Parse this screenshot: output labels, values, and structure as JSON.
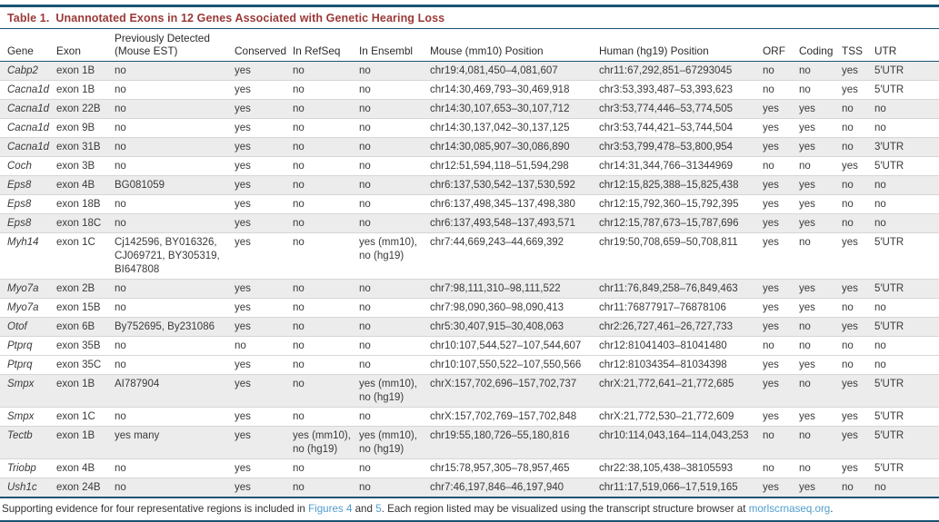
{
  "colors": {
    "rule_blue": "#1b5373",
    "title_red": "#9b3938",
    "link_blue": "#4f9dcd",
    "row_shade": "#ececec"
  },
  "table": {
    "title_label": "Table 1.",
    "title_text": "Unannotated Exons in 12 Genes Associated with Genetic Hearing Loss",
    "columns": [
      "Gene",
      "Exon",
      "Previously Detected (Mouse EST)",
      "Conserved",
      "In RefSeq",
      "In Ensembl",
      "Mouse (mm10) Position",
      "Human (hg19) Position",
      "ORF",
      "Coding",
      "TSS",
      "UTR"
    ],
    "column_keys": [
      "gene",
      "exon",
      "prev-detected",
      "conserved",
      "in-refseq",
      "in-ensembl",
      "mouse-position",
      "human-position",
      "orf",
      "coding",
      "tss",
      "utr"
    ],
    "shaded_row_indices": [
      0,
      2,
      4,
      6,
      8,
      10,
      12,
      15,
      17,
      19
    ],
    "rows": [
      [
        "Cabp2",
        "exon 1B",
        "no",
        "yes",
        "no",
        "no",
        "chr19:4,081,450–4,081,607",
        "chr11:67,292,851–67293045",
        "no",
        "no",
        "yes",
        "5′UTR"
      ],
      [
        "Cacna1d",
        "exon 1B",
        "no",
        "yes",
        "no",
        "no",
        "chr14:30,469,793–30,469,918",
        "chr3:53,393,487–53,393,623",
        "no",
        "no",
        "yes",
        "5′UTR"
      ],
      [
        "Cacna1d",
        "exon 22B",
        "no",
        "yes",
        "no",
        "no",
        "chr14:30,107,653–30,107,712",
        "chr3:53,774,446–53,774,505",
        "yes",
        "yes",
        "no",
        "no"
      ],
      [
        "Cacna1d",
        "exon 9B",
        "no",
        "yes",
        "no",
        "no",
        "chr14:30,137,042–30,137,125",
        "chr3:53,744,421–53,744,504",
        "yes",
        "yes",
        "no",
        "no"
      ],
      [
        "Cacna1d",
        "exon 31B",
        "no",
        "yes",
        "no",
        "no",
        "chr14:30,085,907–30,086,890",
        "chr3:53,799,478–53,800,954",
        "yes",
        "yes",
        "no",
        "3′UTR"
      ],
      [
        "Coch",
        "exon 3B",
        "no",
        "yes",
        "no",
        "no",
        "chr12:51,594,118–51,594,298",
        "chr14:31,344,766–31344969",
        "no",
        "no",
        "yes",
        "5′UTR"
      ],
      [
        "Eps8",
        "exon 4B",
        "BG081059",
        "yes",
        "no",
        "no",
        "chr6:137,530,542–137,530,592",
        "chr12:15,825,388–15,825,438",
        "yes",
        "yes",
        "no",
        "no"
      ],
      [
        "Eps8",
        "exon 18B",
        "no",
        "yes",
        "no",
        "no",
        "chr6:137,498,345–137,498,380",
        "chr12:15,792,360–15,792,395",
        "yes",
        "yes",
        "no",
        "no"
      ],
      [
        "Eps8",
        "exon 18C",
        "no",
        "yes",
        "no",
        "no",
        "chr6:137,493,548–137,493,571",
        "chr12:15,787,673–15,787,696",
        "yes",
        "yes",
        "no",
        "no"
      ],
      [
        "Myh14",
        "exon 1C",
        "Cj142596, BY016326, CJ069721, BY305319, BI647808",
        "yes",
        "no",
        "yes (mm10), no (hg19)",
        "chr7:44,669,243–44,669,392",
        "chr19:50,708,659–50,708,811",
        "yes",
        "no",
        "yes",
        "5′UTR"
      ],
      [
        "Myo7a",
        "exon 2B",
        "no",
        "yes",
        "no",
        "no",
        "chr7:98,111,310–98,111,522",
        "chr11:76,849,258–76,849,463",
        "yes",
        "yes",
        "yes",
        "5′UTR"
      ],
      [
        "Myo7a",
        "exon 15B",
        "no",
        "yes",
        "no",
        "no",
        "chr7:98,090,360–98,090,413",
        "chr11:76877917–76878106",
        "yes",
        "yes",
        "no",
        "no"
      ],
      [
        "Otof",
        "exon 6B",
        "By752695, By231086",
        "yes",
        "no",
        "no",
        "chr5:30,407,915–30,408,063",
        "chr2:26,727,461–26,727,733",
        "yes",
        "no",
        "yes",
        "5′UTR"
      ],
      [
        "Ptprq",
        "exon 35B",
        "no",
        "no",
        "no",
        "no",
        "chr10:107,544,527–107,544,607",
        "chr12:81041403–81041480",
        "no",
        "no",
        "no",
        "no"
      ],
      [
        "Ptprq",
        "exon 35C",
        "no",
        "yes",
        "no",
        "no",
        "chr10:107,550,522–107,550,566",
        "chr12:81034354–81034398",
        "yes",
        "yes",
        "no",
        "no"
      ],
      [
        "Smpx",
        "exon 1B",
        "AI787904",
        "yes",
        "no",
        "yes (mm10), no (hg19)",
        "chrX:157,702,696–157,702,737",
        "chrX:21,772,641–21,772,685",
        "yes",
        "no",
        "yes",
        "5′UTR"
      ],
      [
        "Smpx",
        "exon 1C",
        "no",
        "yes",
        "no",
        "no",
        "chrX:157,702,769–157,702,848",
        "chrX:21,772,530–21,772,609",
        "yes",
        "yes",
        "yes",
        "5′UTR"
      ],
      [
        "Tectb",
        "exon 1B",
        "yes many",
        "yes",
        "yes (mm10), no (hg19)",
        "yes (mm10), no (hg19)",
        "chr19:55,180,726–55,180,816",
        "chr10:114,043,164–114,043,253",
        "no",
        "no",
        "yes",
        "5′UTR"
      ],
      [
        "Triobp",
        "exon 4B",
        "no",
        "yes",
        "no",
        "no",
        "chr15:78,957,305–78,957,465",
        "chr22:38,105,438–38105593",
        "no",
        "no",
        "yes",
        "5′UTR"
      ],
      [
        "Ush1c",
        "exon 24B",
        "no",
        "yes",
        "no",
        "no",
        "chr7:46,197,846–46,197,940",
        "chr11:17,519,066–17,519,165",
        "yes",
        "yes",
        "no",
        "no"
      ]
    ]
  },
  "footer": {
    "segments": [
      {
        "text": "Supporting evidence for four representative regions is included in ",
        "link": false
      },
      {
        "text": "Figures 4",
        "link": true
      },
      {
        "text": " and ",
        "link": false
      },
      {
        "text": "5",
        "link": true
      },
      {
        "text": ". Each region listed may be visualized using the transcript structure browser at ",
        "link": false
      },
      {
        "text": "morlscrnaseq.org",
        "link": true
      },
      {
        "text": ".",
        "link": false
      }
    ]
  }
}
